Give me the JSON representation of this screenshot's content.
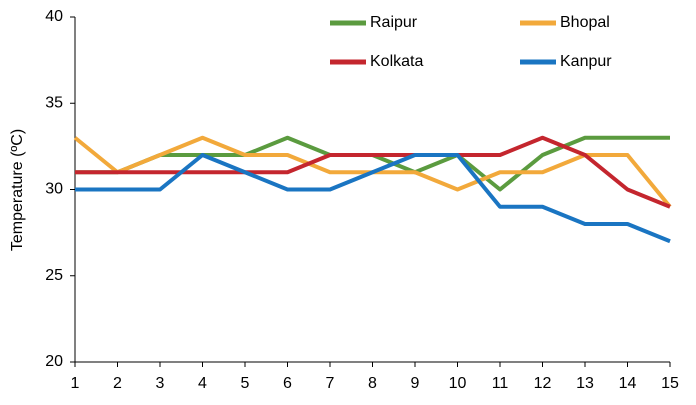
{
  "chart_data": {
    "type": "line",
    "y_label": "Temperature (ºC)",
    "x": [
      1,
      2,
      3,
      4,
      5,
      6,
      7,
      8,
      9,
      10,
      11,
      12,
      13,
      14,
      15
    ],
    "series": [
      {
        "name": "Raipur",
        "color": "#5b9b3f",
        "values": [
          31,
          31,
          32,
          32,
          32,
          33,
          32,
          32,
          31,
          32,
          30,
          32,
          33,
          33,
          33
        ]
      },
      {
        "name": "Bhopal",
        "color": "#f2a93b",
        "values": [
          33,
          31,
          32,
          33,
          32,
          32,
          31,
          31,
          31,
          30,
          31,
          31,
          32,
          32,
          29
        ]
      },
      {
        "name": "Kolkata",
        "color": "#c4262e",
        "values": [
          31,
          31,
          31,
          31,
          31,
          31,
          32,
          32,
          32,
          32,
          32,
          33,
          32,
          30,
          29
        ]
      },
      {
        "name": "Kanpur",
        "color": "#1a75c2",
        "values": [
          30,
          30,
          30,
          32,
          31,
          30,
          30,
          31,
          32,
          32,
          29,
          29,
          28,
          28,
          27
        ]
      }
    ],
    "xlim": [
      1,
      15
    ],
    "xticks": [
      1,
      2,
      3,
      4,
      5,
      6,
      7,
      8,
      9,
      10,
      11,
      12,
      13,
      14,
      15
    ],
    "ylim": [
      20,
      40
    ],
    "yticks": [
      20,
      25,
      30,
      35,
      40
    ],
    "grid": false,
    "legend": "top-right"
  }
}
